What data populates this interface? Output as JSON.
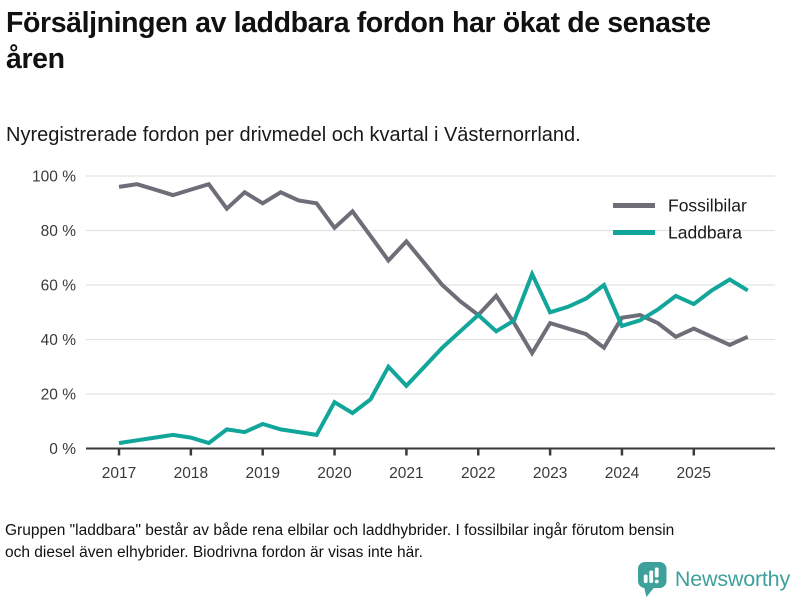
{
  "header": {
    "title": "Försäljningen av laddbara fordon har ökat de senaste åren",
    "subtitle": "Nyregistrerade fordon per drivmedel och kvartal i Västernorrland."
  },
  "chart_data": {
    "type": "line",
    "title": "Försäljningen av laddbara fordon har ökat de senaste åren",
    "subtitle": "Nyregistrerade fordon per drivmedel och kvartal i Västernorrland.",
    "xlabel": "",
    "ylabel": "",
    "ylim": [
      0,
      100
    ],
    "grid": "horizontal",
    "legend_position": "top-right",
    "yticks": [
      "0 %",
      "20 %",
      "40 %",
      "60 %",
      "80 %",
      "100 %"
    ],
    "xticks": [
      "2017",
      "2018",
      "2019",
      "2020",
      "2021",
      "2022",
      "2023",
      "2024",
      "2025"
    ],
    "quarters": [
      "2017 Q1",
      "2017 Q2",
      "2017 Q3",
      "2017 Q4",
      "2018 Q1",
      "2018 Q2",
      "2018 Q3",
      "2018 Q4",
      "2019 Q1",
      "2019 Q2",
      "2019 Q3",
      "2019 Q4",
      "2020 Q1",
      "2020 Q2",
      "2020 Q3",
      "2020 Q4",
      "2021 Q1",
      "2021 Q2",
      "2021 Q3",
      "2021 Q4",
      "2022 Q1",
      "2022 Q2",
      "2022 Q3",
      "2022 Q4",
      "2023 Q1",
      "2023 Q2",
      "2023 Q3",
      "2023 Q4",
      "2024 Q1",
      "2024 Q2",
      "2024 Q3",
      "2024 Q4",
      "2025 Q1",
      "2025 Q2",
      "2025 Q3",
      "2025 Q4"
    ],
    "series": [
      {
        "name": "Fossilbilar",
        "color": "#6e6e78",
        "values": [
          96,
          97,
          95,
          93,
          95,
          97,
          88,
          94,
          90,
          94,
          91,
          90,
          81,
          87,
          78,
          69,
          76,
          68,
          60,
          54,
          49,
          56,
          46,
          35,
          46,
          44,
          42,
          37,
          48,
          49,
          46,
          41,
          44,
          41,
          38,
          41
        ]
      },
      {
        "name": "Laddbara",
        "color": "#12a69b",
        "values": [
          2,
          3,
          4,
          5,
          4,
          2,
          7,
          6,
          9,
          7,
          6,
          5,
          17,
          13,
          18,
          30,
          23,
          30,
          37,
          43,
          49,
          43,
          47,
          64,
          50,
          52,
          55,
          60,
          45,
          47,
          51,
          56,
          53,
          58,
          62,
          58
        ]
      }
    ]
  },
  "footer": {
    "lines": [
      "Gruppen \"laddbara\" består av både rena elbilar och laddhybrider. I fossilbilar ingår förutom bensin",
      "och diesel även elhybrider. Biodrivna fordon är visas inte här."
    ],
    "brand": "Newsworthy"
  },
  "colors": {
    "fossil_gray": "#6e6e78",
    "laddbara_teal": "#12a69b",
    "brand_teal": "#3ea09b",
    "axis": "#3a3a3a",
    "grid": "#e2e2e2",
    "text": "#111111"
  }
}
